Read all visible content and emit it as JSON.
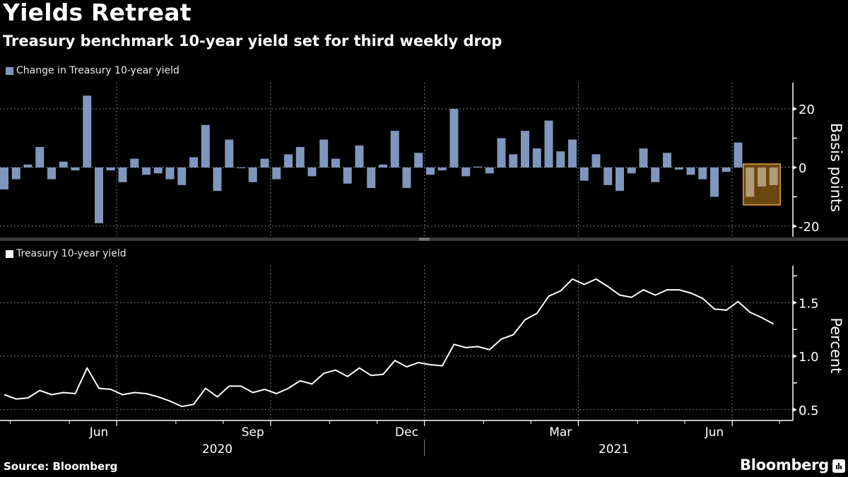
{
  "header": {
    "title": "Yields Retreat",
    "subtitle": "Treasury benchmark 10-year yield set for third weekly drop"
  },
  "footer": {
    "source": "Source: Bloomberg",
    "brand": "Bloomberg"
  },
  "colors": {
    "bar": "#7f96bd",
    "line": "#ffffff",
    "highlight_fill": "#6b4710",
    "highlight_border": "#e8a040",
    "separator": "#3a3a3a"
  },
  "chart_data": [
    {
      "type": "bar",
      "legend": "Change in Treasury 10-year yield",
      "ylabel": "Basis points",
      "ylim": [
        -24,
        28
      ],
      "yticks": [
        -20,
        0,
        20
      ],
      "ytick_labels": [
        "-20",
        "0",
        "20"
      ],
      "grid": true,
      "frequency": "weekly",
      "values": [
        -7.5,
        -4,
        1,
        7,
        -4,
        2,
        -1,
        24.5,
        -19,
        -1,
        -5,
        3,
        -2.5,
        -2,
        -4,
        -6,
        3.5,
        14.5,
        -8,
        9.5,
        0,
        -5,
        3,
        -4,
        4.5,
        7,
        -3,
        9.5,
        3,
        -5.5,
        7.5,
        -7,
        1,
        12.5,
        -7,
        5,
        -2.5,
        -1,
        20,
        -3,
        0.3,
        -2,
        10,
        4.5,
        12.5,
        6.5,
        16,
        5.5,
        9.5,
        -4.5,
        4.5,
        -6,
        -8,
        -2,
        6.5,
        -5,
        5,
        -0.7,
        -2.5,
        -4,
        -10,
        -1.5,
        8.5,
        -10,
        -6.5,
        -6
      ],
      "highlight": {
        "from_index": 63,
        "to_index": 65,
        "label": "third weekly drop"
      }
    },
    {
      "type": "line",
      "legend": "Treasury 10-year yield",
      "ylabel": "Percent",
      "ylim": [
        0.4,
        1.85
      ],
      "yticks": [
        0.5,
        1.0,
        1.5
      ],
      "ytick_labels": [
        "0.5",
        "1.0",
        "1.5"
      ],
      "grid": true,
      "values": [
        0.64,
        0.6,
        0.61,
        0.68,
        0.64,
        0.66,
        0.65,
        0.89,
        0.7,
        0.69,
        0.64,
        0.66,
        0.65,
        0.62,
        0.58,
        0.53,
        0.55,
        0.7,
        0.62,
        0.72,
        0.72,
        0.66,
        0.69,
        0.65,
        0.7,
        0.77,
        0.74,
        0.84,
        0.87,
        0.81,
        0.89,
        0.82,
        0.83,
        0.96,
        0.9,
        0.94,
        0.92,
        0.91,
        1.11,
        1.08,
        1.09,
        1.06,
        1.16,
        1.2,
        1.34,
        1.4,
        1.56,
        1.61,
        1.72,
        1.67,
        1.72,
        1.65,
        1.57,
        1.55,
        1.62,
        1.57,
        1.62,
        1.62,
        1.59,
        1.54,
        1.44,
        1.43,
        1.51,
        1.41,
        1.36,
        1.3
      ]
    }
  ],
  "xaxis": {
    "month_labels": [
      {
        "label": "Jun",
        "week": 8
      },
      {
        "label": "Sep",
        "week": 21
      },
      {
        "label": "Dec",
        "week": 34
      },
      {
        "label": "Mar",
        "week": 47
      },
      {
        "label": "Jun",
        "week": 60
      }
    ],
    "year_labels": [
      {
        "label": "2020",
        "week": 18
      },
      {
        "label": "2021",
        "week": 51.5
      }
    ],
    "quarter_gridlines_at_week": [
      10,
      23,
      36,
      49,
      62
    ],
    "minor_ticks_at_week": [
      1,
      6,
      15,
      19,
      28,
      32,
      41,
      45,
      54,
      58,
      66
    ],
    "year_divider_at_week": 36
  }
}
